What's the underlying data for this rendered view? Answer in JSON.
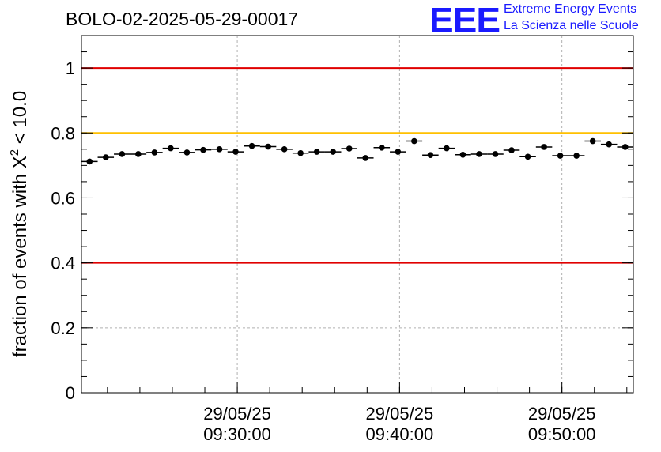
{
  "header": {
    "run_title": "BOLO-02-2025-05-29-00017"
  },
  "logo": {
    "mark": "EEE",
    "line1": "Extreme Energy Events",
    "line2": "La Scienza nelle Scuole",
    "color": "#1a1aff"
  },
  "chart_data": {
    "type": "scatter",
    "title": "BOLO-02-2025-05-29-00017",
    "ylabel_main": "fraction of events with X",
    "ylabel_sup": "2",
    "ylabel_tail": " < 10.0",
    "ylim": [
      0,
      1.1
    ],
    "yticks": [
      {
        "value": 0,
        "label": "0"
      },
      {
        "value": 0.2,
        "label": "0.2"
      },
      {
        "value": 0.4,
        "label": "0.4"
      },
      {
        "value": 0.6,
        "label": "0.6"
      },
      {
        "value": 0.8,
        "label": "0.8"
      },
      {
        "value": 1,
        "label": "1"
      }
    ],
    "xlim_minutes": [
      0,
      34
    ],
    "xticks": [
      {
        "minute": 9.6,
        "date": "29/05/25",
        "time": "09:30:00"
      },
      {
        "minute": 19.6,
        "date": "29/05/25",
        "time": "09:40:00"
      },
      {
        "minute": 29.6,
        "date": "29/05/25",
        "time": "09:50:00"
      }
    ],
    "minor_tick_step_minutes": 2,
    "grid": true,
    "reference_lines": [
      {
        "value": 1.0,
        "color": "#e00000"
      },
      {
        "value": 0.8,
        "color": "#ffc000"
      },
      {
        "value": 0.4,
        "color": "#e00000"
      }
    ],
    "bin_width_minutes": 1,
    "x_minutes": [
      0.5,
      1.5,
      2.5,
      3.5,
      4.5,
      5.5,
      6.5,
      7.5,
      8.5,
      9.5,
      10.5,
      11.5,
      12.5,
      13.5,
      14.5,
      15.5,
      16.5,
      17.5,
      18.5,
      19.5,
      20.5,
      21.5,
      22.5,
      23.5,
      24.5,
      25.5,
      26.5,
      27.5,
      28.5,
      29.5,
      30.5,
      31.5,
      32.5,
      33.5
    ],
    "values": [
      0.712,
      0.725,
      0.735,
      0.735,
      0.74,
      0.753,
      0.74,
      0.748,
      0.75,
      0.742,
      0.76,
      0.758,
      0.75,
      0.738,
      0.742,
      0.742,
      0.752,
      0.723,
      0.755,
      0.742,
      0.775,
      0.732,
      0.753,
      0.733,
      0.735,
      0.735,
      0.747,
      0.727,
      0.757,
      0.73,
      0.73,
      0.775,
      0.765,
      0.757
    ],
    "error": 0.007
  }
}
